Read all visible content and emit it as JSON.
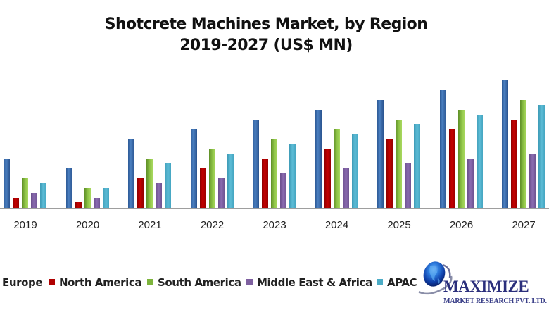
{
  "chart_data": {
    "type": "bar",
    "title": "Shotcrete Machines Market, by Region",
    "subtitle": "2019-2027 (US$ MN)",
    "xlabel": "",
    "ylabel": "",
    "categories": [
      "2019",
      "2020",
      "2021",
      "2022",
      "2023",
      "2024",
      "2025",
      "2026",
      "2027"
    ],
    "series": [
      {
        "name": "Europe",
        "color": "#3A6BAA",
        "values": [
          5,
          4,
          7,
          8,
          9,
          10,
          11,
          12,
          13
        ]
      },
      {
        "name": "North America",
        "color": "#B00000",
        "values": [
          1,
          0.6,
          3,
          4,
          5,
          6,
          7,
          8,
          9
        ]
      },
      {
        "name": "South America",
        "color": "#7DB43C",
        "values": [
          3,
          2,
          5,
          6,
          7,
          8,
          9,
          10,
          11
        ]
      },
      {
        "name": "Middle East & Africa",
        "color": "#7E60A0",
        "values": [
          1.5,
          1,
          2.5,
          3,
          3.5,
          4,
          4.5,
          5,
          5.5
        ]
      },
      {
        "name": "APAC",
        "color": "#4BACC6",
        "values": [
          2.5,
          2,
          4.5,
          5.5,
          6.5,
          7.5,
          8.5,
          9.5,
          10.5
        ]
      }
    ],
    "value_note": "No y-axis shown; values are relative heights read from bar pixel heights",
    "ylim": [
      0,
      14
    ],
    "grid": false,
    "legend_position": "bottom"
  },
  "title": {
    "line1": "Shotcrete Machines Market, by Region",
    "line2": "2019-2027 (US$ MN)"
  },
  "legend": [
    {
      "label": "Europe",
      "color": "#3A6BAA"
    },
    {
      "label": "North America",
      "color": "#B00000"
    },
    {
      "label": "South America",
      "color": "#7DB43C"
    },
    {
      "label": "Middle East & Africa",
      "color": "#7E60A0"
    },
    {
      "label": "APAC",
      "color": "#4BACC6"
    }
  ],
  "logo": {
    "name": "MAXIMIZE",
    "tagline": "MARKET RESEARCH PVT. LTD.",
    "icon": "globe-icon"
  }
}
